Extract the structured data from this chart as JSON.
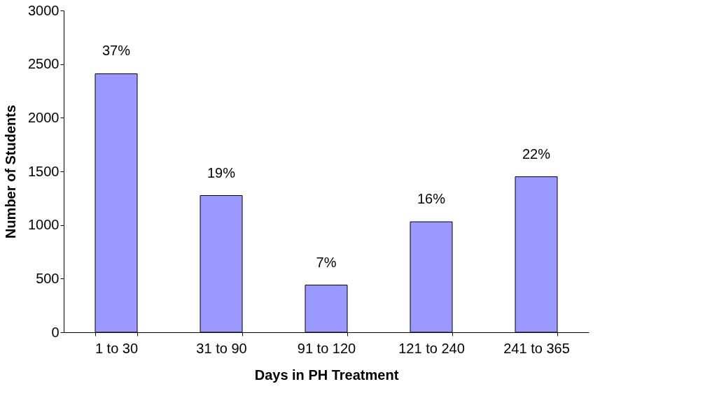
{
  "chart_data": {
    "type": "bar",
    "xlabel": "Days in PH Treatment",
    "ylabel": "Number of Students",
    "categories": [
      "1 to 30",
      "31 to 90",
      "91 to 120",
      "121 to 240",
      "241 to 365"
    ],
    "series": [
      {
        "color": "#9999ff",
        "values": [
          2410,
          1275,
          440,
          1030,
          1450
        ]
      }
    ],
    "annotations": [
      {
        "text": "37%",
        "x": "1 to 30",
        "y": 2410
      },
      {
        "text": "19%",
        "x": "31 to 90",
        "y": 1275
      },
      {
        "text": "7%",
        "x": "91 to 120",
        "y": 440
      },
      {
        "text": "16%",
        "x": "121 to 240",
        "y": 1030
      },
      {
        "text": "22%",
        "x": "241 to 365",
        "y": 1450
      }
    ],
    "ylim": [
      0,
      3000
    ],
    "yticks": [
      0,
      500,
      1000,
      1500,
      2000,
      2500,
      3000
    ],
    "grid": false
  }
}
